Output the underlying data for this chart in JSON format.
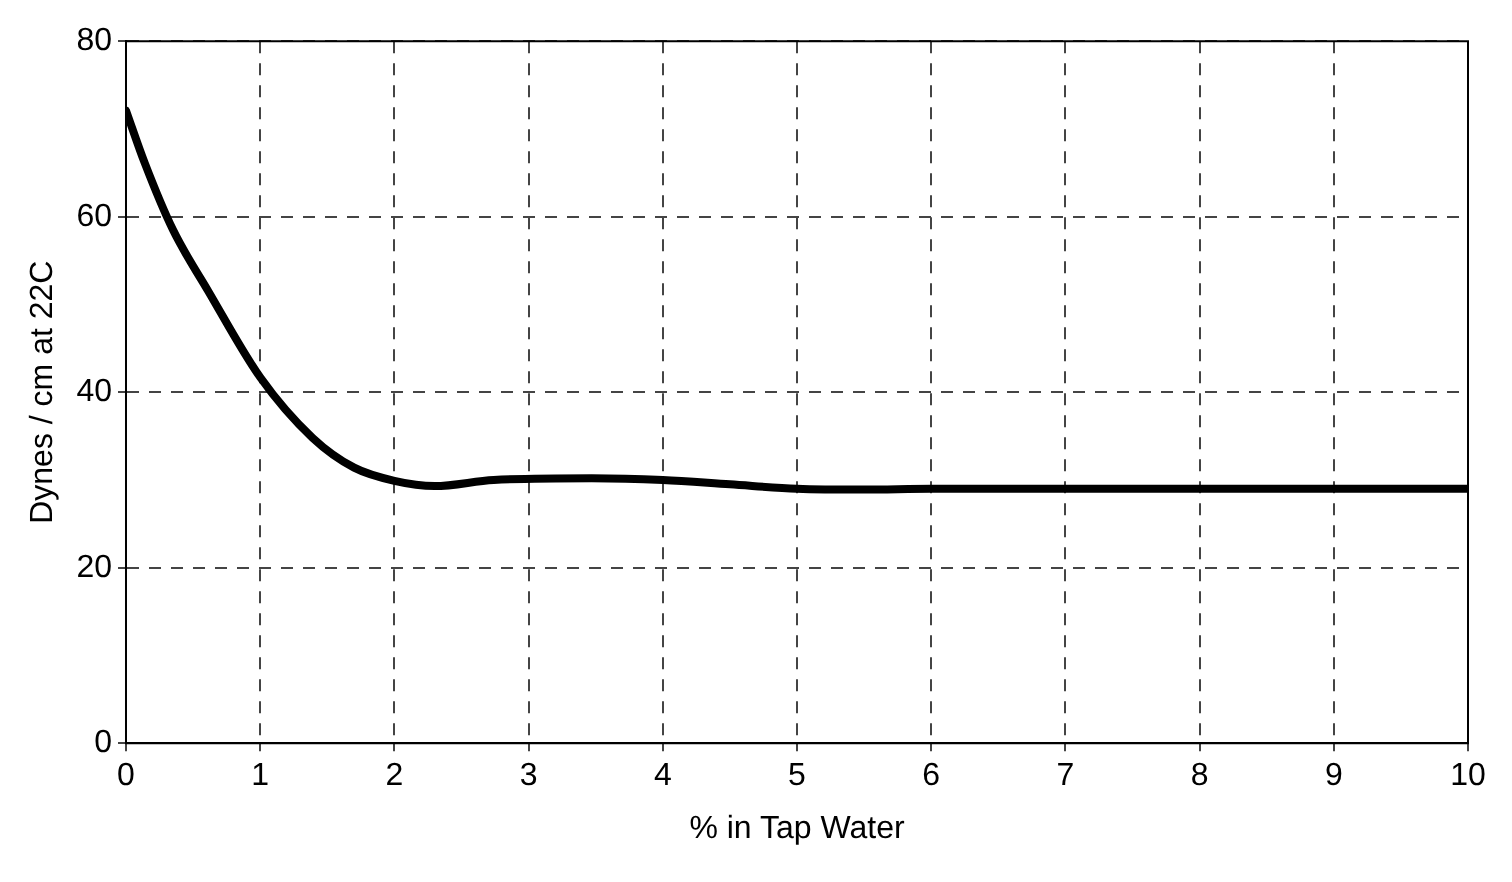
{
  "chart_data": {
    "type": "line",
    "xlabel": "% in Tap Water",
    "ylabel": "Dynes / cm at 22C",
    "xlim": [
      0,
      10
    ],
    "xticks": [
      0,
      1,
      2,
      3,
      4,
      5,
      6,
      7,
      8,
      9,
      10
    ],
    "ylim": [
      0,
      80
    ],
    "yticks": [
      0,
      20,
      40,
      60,
      80
    ],
    "grid": true,
    "legend": false,
    "marker": "none",
    "line_style": "solid",
    "series": [
      {
        "color": "#000000",
        "x": [
          0,
          0.14,
          0.35,
          0.61,
          1.0,
          1.39,
          1.7,
          2.0,
          2.3,
          2.74,
          3.47,
          4.0,
          4.5,
          5.0,
          5.5,
          6,
          7,
          8,
          9,
          10
        ],
        "values": [
          72.1,
          66.1,
          58.5,
          51.6,
          41.7,
          34.8,
          31.4,
          29.9,
          29.3,
          30.0,
          30.2,
          30.0,
          29.5,
          29.0,
          28.9,
          29,
          29,
          29,
          29,
          29
        ]
      }
    ]
  }
}
